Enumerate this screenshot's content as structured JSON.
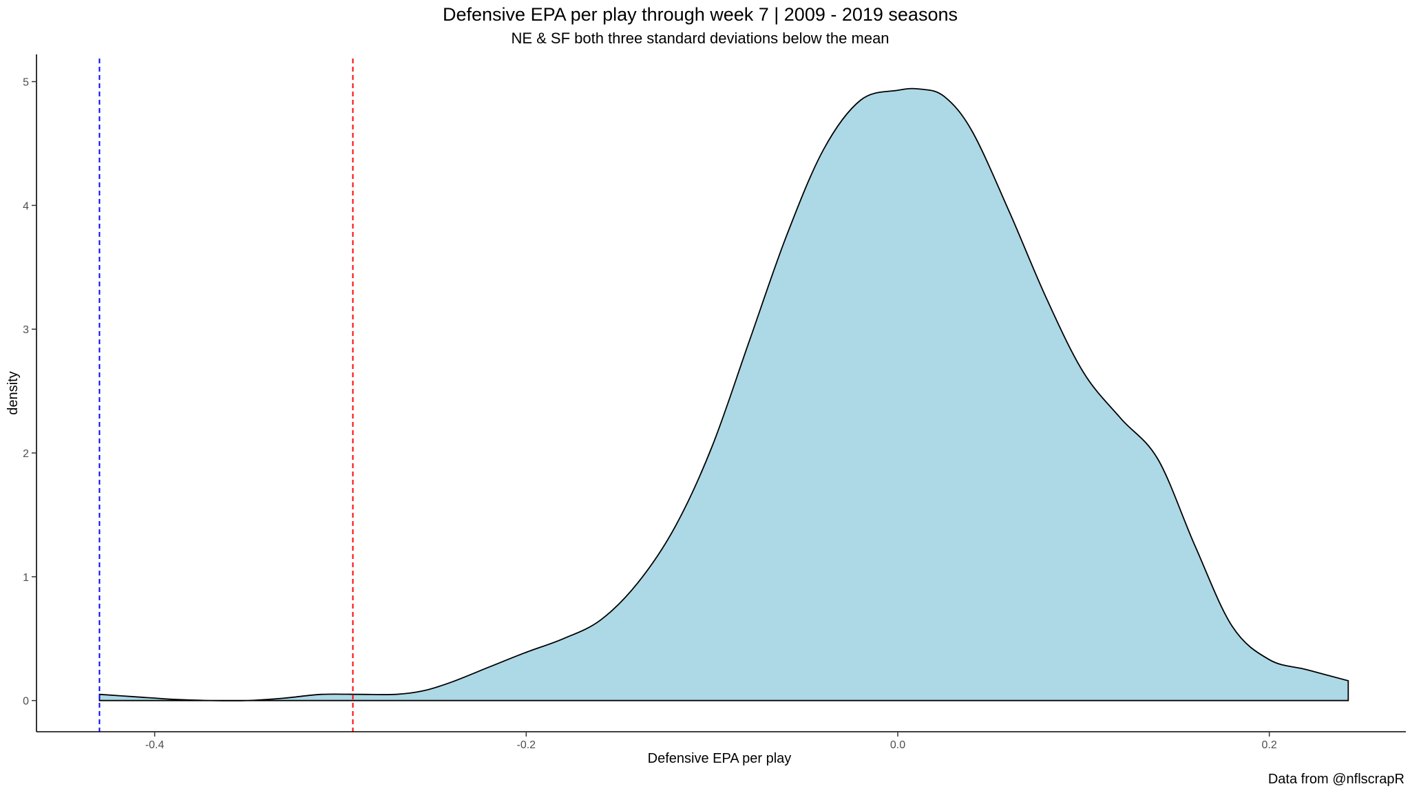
{
  "chart_data": {
    "type": "area",
    "title": "Defensive EPA per play through week 7 | 2009 - 2019 seasons",
    "subtitle": "NE & SF both three standard deviations below the mean",
    "xlabel": "Defensive EPA per play",
    "ylabel": "density",
    "caption": "Data from @nflscrapR",
    "xlim": [
      -0.4636,
      0.2735
    ],
    "ylim": [
      -0.252,
      5.22
    ],
    "x_ticks": [
      -0.4,
      -0.2,
      0.0,
      0.2
    ],
    "x_tick_labels": [
      "-0.4",
      "-0.2",
      "0.0",
      "0.2"
    ],
    "y_ticks": [
      0,
      1,
      2,
      3,
      4,
      5
    ],
    "y_tick_labels": [
      "0",
      "1",
      "2",
      "3",
      "4",
      "5"
    ],
    "grid": false,
    "fill_color": "#add8e6",
    "line_color": "#000000",
    "series": [
      {
        "x": [
          -0.4297,
          -0.41,
          -0.39,
          -0.37,
          -0.35,
          -0.33,
          -0.31,
          -0.29,
          -0.27,
          -0.255,
          -0.24,
          -0.22,
          -0.2,
          -0.18,
          -0.16,
          -0.14,
          -0.12,
          -0.1,
          -0.08,
          -0.06,
          -0.04,
          -0.02,
          0.0,
          0.012,
          0.025,
          0.04,
          0.06,
          0.08,
          0.1,
          0.12,
          0.14,
          0.16,
          0.18,
          0.2,
          0.22,
          0.2425
        ],
        "y": [
          0.05,
          0.03,
          0.01,
          0.0,
          0.0,
          0.02,
          0.05,
          0.05,
          0.05,
          0.08,
          0.15,
          0.27,
          0.39,
          0.5,
          0.65,
          0.95,
          1.4,
          2.05,
          2.9,
          3.75,
          4.45,
          4.85,
          4.93,
          4.94,
          4.88,
          4.6,
          3.95,
          3.25,
          2.65,
          2.28,
          1.95,
          1.25,
          0.6,
          0.33,
          0.25,
          0.16
        ]
      }
    ],
    "vlines": [
      {
        "x": -0.4297,
        "color": "#0000ff",
        "style": "dashed"
      },
      {
        "x": -0.2933,
        "color": "#ff0000",
        "style": "dashed"
      }
    ]
  }
}
